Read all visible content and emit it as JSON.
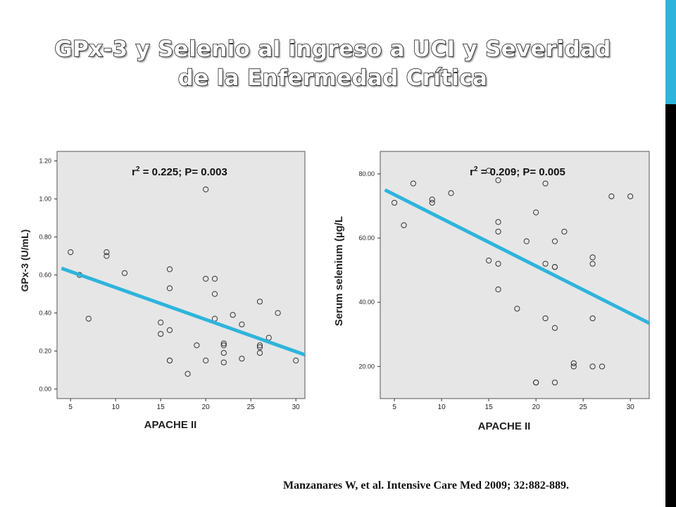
{
  "slide": {
    "title_line1": "GPx-3 y Selenio al ingreso a UCI y Severidad",
    "title_line2": "de la Enfermedad Crítica",
    "citation": "Manzanares W, et al. Intensive Care Med 2009; 32:882-889.",
    "accent_color": "#2eb4dc"
  },
  "chart_data": [
    {
      "type": "scatter",
      "annotation_r": "r",
      "annotation_sup": "2",
      "annotation_rest": " = 0.225; P= 0.003",
      "xlabel": "APACHE II",
      "ylabel": "GPx-3  (U/mL)",
      "xlim": [
        3.5,
        31
      ],
      "ylim": [
        -0.05,
        1.25
      ],
      "x_ticks": [
        5,
        10,
        15,
        20,
        25,
        30
      ],
      "y_ticks": [
        0.0,
        0.2,
        0.4,
        0.6,
        0.8,
        1.0,
        1.2
      ],
      "y_tick_labels": [
        "0.00",
        "0.20",
        "0.40",
        "0.60",
        "0.80",
        "1.00",
        "1.20"
      ],
      "fit_line": {
        "x": [
          4,
          31
        ],
        "y": [
          0.635,
          0.18
        ],
        "color": "#2eb4dc"
      },
      "points": [
        {
          "x": 5,
          "y": 0.72
        },
        {
          "x": 6,
          "y": 0.6
        },
        {
          "x": 7,
          "y": 0.37
        },
        {
          "x": 9,
          "y": 0.72
        },
        {
          "x": 9,
          "y": 0.7
        },
        {
          "x": 11,
          "y": 0.61
        },
        {
          "x": 15,
          "y": 0.35
        },
        {
          "x": 15,
          "y": 0.29
        },
        {
          "x": 16,
          "y": 0.63
        },
        {
          "x": 16,
          "y": 0.53
        },
        {
          "x": 16,
          "y": 0.31
        },
        {
          "x": 16,
          "y": 0.15
        },
        {
          "x": 16,
          "y": 0.15
        },
        {
          "x": 18,
          "y": 0.08
        },
        {
          "x": 19,
          "y": 0.23
        },
        {
          "x": 20,
          "y": 1.05
        },
        {
          "x": 20,
          "y": 0.58
        },
        {
          "x": 20,
          "y": 0.15
        },
        {
          "x": 21,
          "y": 0.58
        },
        {
          "x": 21,
          "y": 0.5
        },
        {
          "x": 21,
          "y": 0.37
        },
        {
          "x": 22,
          "y": 0.24
        },
        {
          "x": 22,
          "y": 0.23
        },
        {
          "x": 22,
          "y": 0.19
        },
        {
          "x": 22,
          "y": 0.14
        },
        {
          "x": 23,
          "y": 0.39
        },
        {
          "x": 24,
          "y": 0.34
        },
        {
          "x": 24,
          "y": 0.16
        },
        {
          "x": 26,
          "y": 0.46
        },
        {
          "x": 26,
          "y": 0.23
        },
        {
          "x": 26,
          "y": 0.22
        },
        {
          "x": 26,
          "y": 0.19
        },
        {
          "x": 27,
          "y": 0.27
        },
        {
          "x": 28,
          "y": 0.4
        },
        {
          "x": 30,
          "y": 0.15
        }
      ]
    },
    {
      "type": "scatter",
      "annotation_r": "r",
      "annotation_sup": "2",
      "annotation_rest": " = 0.209; P= 0.005",
      "xlabel": "APACHE II",
      "ylabel": "Serum selenium (µg/L",
      "xlim": [
        3.5,
        32
      ],
      "ylim": [
        10,
        87
      ],
      "x_ticks": [
        5,
        10,
        15,
        20,
        25,
        30
      ],
      "y_ticks": [
        20,
        40,
        60,
        80
      ],
      "y_tick_labels": [
        "20.00",
        "40.00",
        "60.00",
        "80.00"
      ],
      "fit_line": {
        "x": [
          4,
          32
        ],
        "y": [
          75,
          33.5
        ],
        "color": "#2eb4dc"
      },
      "points": [
        {
          "x": 5,
          "y": 71
        },
        {
          "x": 6,
          "y": 64
        },
        {
          "x": 7,
          "y": 77
        },
        {
          "x": 9,
          "y": 72
        },
        {
          "x": 9,
          "y": 71
        },
        {
          "x": 11,
          "y": 74
        },
        {
          "x": 15,
          "y": 81
        },
        {
          "x": 15,
          "y": 53
        },
        {
          "x": 16,
          "y": 78
        },
        {
          "x": 16,
          "y": 65
        },
        {
          "x": 16,
          "y": 62
        },
        {
          "x": 16,
          "y": 52
        },
        {
          "x": 16,
          "y": 44
        },
        {
          "x": 18,
          "y": 38
        },
        {
          "x": 19,
          "y": 59
        },
        {
          "x": 20,
          "y": 68
        },
        {
          "x": 20,
          "y": 15
        },
        {
          "x": 20,
          "y": 15
        },
        {
          "x": 21,
          "y": 77
        },
        {
          "x": 21,
          "y": 52
        },
        {
          "x": 21,
          "y": 35
        },
        {
          "x": 22,
          "y": 59
        },
        {
          "x": 22,
          "y": 51
        },
        {
          "x": 22,
          "y": 51
        },
        {
          "x": 22,
          "y": 32
        },
        {
          "x": 22,
          "y": 15
        },
        {
          "x": 23,
          "y": 62
        },
        {
          "x": 24,
          "y": 21
        },
        {
          "x": 24,
          "y": 20
        },
        {
          "x": 26,
          "y": 54
        },
        {
          "x": 26,
          "y": 52
        },
        {
          "x": 26,
          "y": 35
        },
        {
          "x": 26,
          "y": 20
        },
        {
          "x": 27,
          "y": 20
        },
        {
          "x": 28,
          "y": 73
        },
        {
          "x": 30,
          "y": 73
        }
      ]
    }
  ]
}
